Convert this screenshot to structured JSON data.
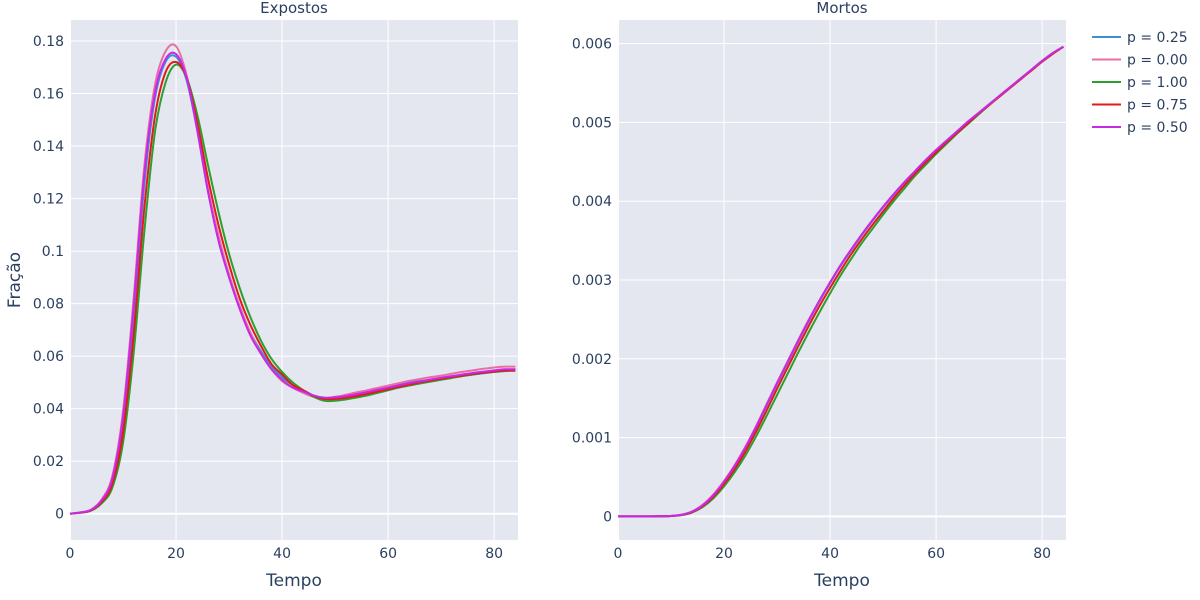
{
  "chart_data": {
    "type": "line",
    "ylabel": "Fração",
    "legend_position": "top-right",
    "x": [
      0,
      2,
      4,
      6,
      8,
      10,
      12,
      14,
      16,
      18,
      20,
      22,
      24,
      26,
      28,
      30,
      32,
      34,
      36,
      38,
      40,
      42,
      44,
      46,
      48,
      50,
      52,
      54,
      56,
      58,
      60,
      62,
      64,
      66,
      68,
      70,
      72,
      74,
      76,
      78,
      80,
      82,
      84
    ],
    "panels": [
      {
        "title": "Expostos",
        "xlabel": "Tempo",
        "xlim": [
          0,
          84.5
        ],
        "ylim": [
          -0.01,
          0.188
        ],
        "xticks": [
          0,
          20,
          40,
          60,
          80
        ],
        "yticks": [
          0,
          0.02,
          0.04,
          0.06,
          0.08,
          0.1,
          0.12,
          0.14,
          0.16,
          0.18
        ],
        "ytick_labels": [
          "0",
          "0.02",
          "0.04",
          "0.06",
          "0.08",
          "0.1",
          "0.12",
          "0.14",
          "0.16",
          "0.18"
        ],
        "series": [
          {
            "name": "p = 0.25",
            "color": "#3d8fd1",
            "values": [
              0,
              0.0005,
              0.0015,
              0.005,
              0.013,
              0.035,
              0.075,
              0.125,
              0.158,
              0.172,
              0.174,
              0.165,
              0.146,
              0.123,
              0.105,
              0.091,
              0.079,
              0.069,
              0.062,
              0.056,
              0.052,
              0.049,
              0.047,
              0.045,
              0.044,
              0.0445,
              0.045,
              0.0455,
              0.046,
              0.047,
              0.048,
              0.049,
              0.05,
              0.0505,
              0.051,
              0.0515,
              0.052,
              0.0525,
              0.053,
              0.0535,
              0.054,
              0.0545,
              0.055
            ]
          },
          {
            "name": "p = 0.00",
            "color": "#e76fa4",
            "values": [
              0,
              0.0005,
              0.0016,
              0.0055,
              0.0145,
              0.039,
              0.082,
              0.132,
              0.163,
              0.176,
              0.178,
              0.167,
              0.147,
              0.124,
              0.106,
              0.091,
              0.079,
              0.069,
              0.061,
              0.055,
              0.0505,
              0.048,
              0.046,
              0.0445,
              0.044,
              0.0445,
              0.0453,
              0.0462,
              0.047,
              0.0479,
              0.0488,
              0.0497,
              0.0506,
              0.0513,
              0.052,
              0.0526,
              0.0533,
              0.054,
              0.0546,
              0.0552,
              0.0557,
              0.056,
              0.056
            ]
          },
          {
            "name": "p = 1.00",
            "color": "#2ca02c",
            "values": [
              0,
              0.0004,
              0.0012,
              0.004,
              0.01,
              0.027,
              0.061,
              0.107,
              0.145,
              0.164,
              0.171,
              0.166,
              0.152,
              0.133,
              0.115,
              0.099,
              0.086,
              0.075,
              0.066,
              0.059,
              0.054,
              0.05,
              0.047,
              0.0445,
              0.043,
              0.043,
              0.0435,
              0.0442,
              0.045,
              0.046,
              0.047,
              0.048,
              0.0488,
              0.0496,
              0.0503,
              0.051,
              0.0517,
              0.0524,
              0.053,
              0.0536,
              0.054,
              0.0543,
              0.0545
            ]
          },
          {
            "name": "p = 0.75",
            "color": "#e31a1c",
            "values": [
              0,
              0.0004,
              0.0013,
              0.0045,
              0.0115,
              0.031,
              0.068,
              0.116,
              0.151,
              0.168,
              0.172,
              0.166,
              0.149,
              0.128,
              0.11,
              0.095,
              0.082,
              0.072,
              0.064,
              0.057,
              0.053,
              0.049,
              0.047,
              0.0448,
              0.0437,
              0.0437,
              0.0441,
              0.0448,
              0.0456,
              0.0465,
              0.0474,
              0.0483,
              0.0491,
              0.05,
              0.0507,
              0.0514,
              0.052,
              0.0526,
              0.0532,
              0.0537,
              0.0541,
              0.0545,
              0.0545
            ]
          },
          {
            "name": "p = 0.50",
            "color": "#c928e6",
            "values": [
              0,
              0.0005,
              0.0015,
              0.0052,
              0.0135,
              0.037,
              0.079,
              0.129,
              0.16,
              0.173,
              0.175,
              0.166,
              0.146,
              0.123,
              0.104,
              0.09,
              0.078,
              0.068,
              0.061,
              0.055,
              0.051,
              0.048,
              0.0465,
              0.045,
              0.0442,
              0.0443,
              0.0448,
              0.0455,
              0.0463,
              0.0472,
              0.048,
              0.0489,
              0.0497,
              0.0504,
              0.0511,
              0.0518,
              0.0524,
              0.053,
              0.0536,
              0.0541,
              0.0546,
              0.055,
              0.055
            ]
          }
        ]
      },
      {
        "title": "Mortos",
        "xlabel": "Tempo",
        "xlim": [
          0,
          84.5
        ],
        "ylim": [
          -0.0003,
          0.0063
        ],
        "xticks": [
          0,
          20,
          40,
          60,
          80
        ],
        "yticks": [
          0,
          0.001,
          0.002,
          0.003,
          0.004,
          0.005,
          0.006
        ],
        "ytick_labels": [
          "0",
          "0.001",
          "0.002",
          "0.003",
          "0.004",
          "0.005",
          "0.006"
        ],
        "series": [
          {
            "name": "p = 0.25",
            "color": "#3d8fd1",
            "values": [
              0,
              0,
              0,
              0,
              1e-06,
              5e-06,
              2e-05,
              6e-05,
              0.00014,
              0.00027,
              0.00043,
              0.00063,
              0.00086,
              0.00112,
              0.0014,
              0.00168,
              0.00195,
              0.00222,
              0.00248,
              0.00273,
              0.00296,
              0.00318,
              0.00338,
              0.00357,
              0.00375,
              0.00392,
              0.00408,
              0.00424,
              0.00438,
              0.00452,
              0.00465,
              0.00477,
              0.00489,
              0.00501,
              0.00512,
              0.00523,
              0.00534,
              0.00545,
              0.00556,
              0.00567,
              0.00578,
              0.00588,
              0.00596
            ]
          },
          {
            "name": "p = 0.00",
            "color": "#e76fa4",
            "values": [
              0,
              0,
              0,
              0,
              1e-06,
              6e-06,
              2.2e-05,
              6.5e-05,
              0.00015,
              0.00028,
              0.00045,
              0.00065,
              0.00088,
              0.00114,
              0.00142,
              0.0017,
              0.00197,
              0.00224,
              0.0025,
              0.00274,
              0.00297,
              0.00319,
              0.00339,
              0.00358,
              0.00376,
              0.00393,
              0.00409,
              0.00424,
              0.00438,
              0.00452,
              0.00465,
              0.00477,
              0.00489,
              0.00501,
              0.00512,
              0.00523,
              0.00534,
              0.00545,
              0.00556,
              0.00567,
              0.00578,
              0.00588,
              0.00596
            ]
          },
          {
            "name": "p = 1.00",
            "color": "#2ca02c",
            "values": [
              0,
              0,
              0,
              0,
              1e-06,
              4e-06,
              1.5e-05,
              5e-05,
              0.00012,
              0.00023,
              0.00038,
              0.00056,
              0.00077,
              0.00101,
              0.00127,
              0.00154,
              0.00181,
              0.00208,
              0.00234,
              0.00259,
              0.00283,
              0.00306,
              0.00327,
              0.00347,
              0.00365,
              0.00383,
              0.004,
              0.00416,
              0.00432,
              0.00446,
              0.0046,
              0.00473,
              0.00486,
              0.00498,
              0.0051,
              0.00522,
              0.00534,
              0.00545,
              0.00556,
              0.00567,
              0.00578,
              0.00588,
              0.00596
            ]
          },
          {
            "name": "p = 0.75",
            "color": "#e31a1c",
            "values": [
              0,
              0,
              0,
              0,
              1e-06,
              4e-06,
              1.8e-05,
              5.5e-05,
              0.00013,
              0.00025,
              0.00041,
              0.0006,
              0.00082,
              0.00107,
              0.00134,
              0.00162,
              0.00189,
              0.00216,
              0.00242,
              0.00267,
              0.0029,
              0.00312,
              0.00333,
              0.00352,
              0.0037,
              0.00387,
              0.00404,
              0.0042,
              0.00435,
              0.00449,
              0.00462,
              0.00475,
              0.00487,
              0.00499,
              0.00511,
              0.00522,
              0.00533,
              0.00544,
              0.00555,
              0.00566,
              0.00577,
              0.00587,
              0.00596
            ]
          },
          {
            "name": "p = 0.50",
            "color": "#c928e6",
            "values": [
              0,
              0,
              0,
              0,
              1e-06,
              5e-06,
              2e-05,
              6e-05,
              0.00014,
              0.00027,
              0.00044,
              0.00064,
              0.00087,
              0.00113,
              0.00141,
              0.00169,
              0.00196,
              0.00223,
              0.00249,
              0.00274,
              0.00297,
              0.00319,
              0.00339,
              0.00358,
              0.00376,
              0.00393,
              0.00409,
              0.00424,
              0.00438,
              0.00452,
              0.00465,
              0.00477,
              0.00489,
              0.00501,
              0.00512,
              0.00523,
              0.00534,
              0.00545,
              0.00556,
              0.00567,
              0.00578,
              0.00588,
              0.00596
            ]
          }
        ]
      }
    ]
  },
  "style": {
    "plot_bg": "#e5e7f0",
    "grid": "#ffffff",
    "text": "#2a3f5f"
  }
}
